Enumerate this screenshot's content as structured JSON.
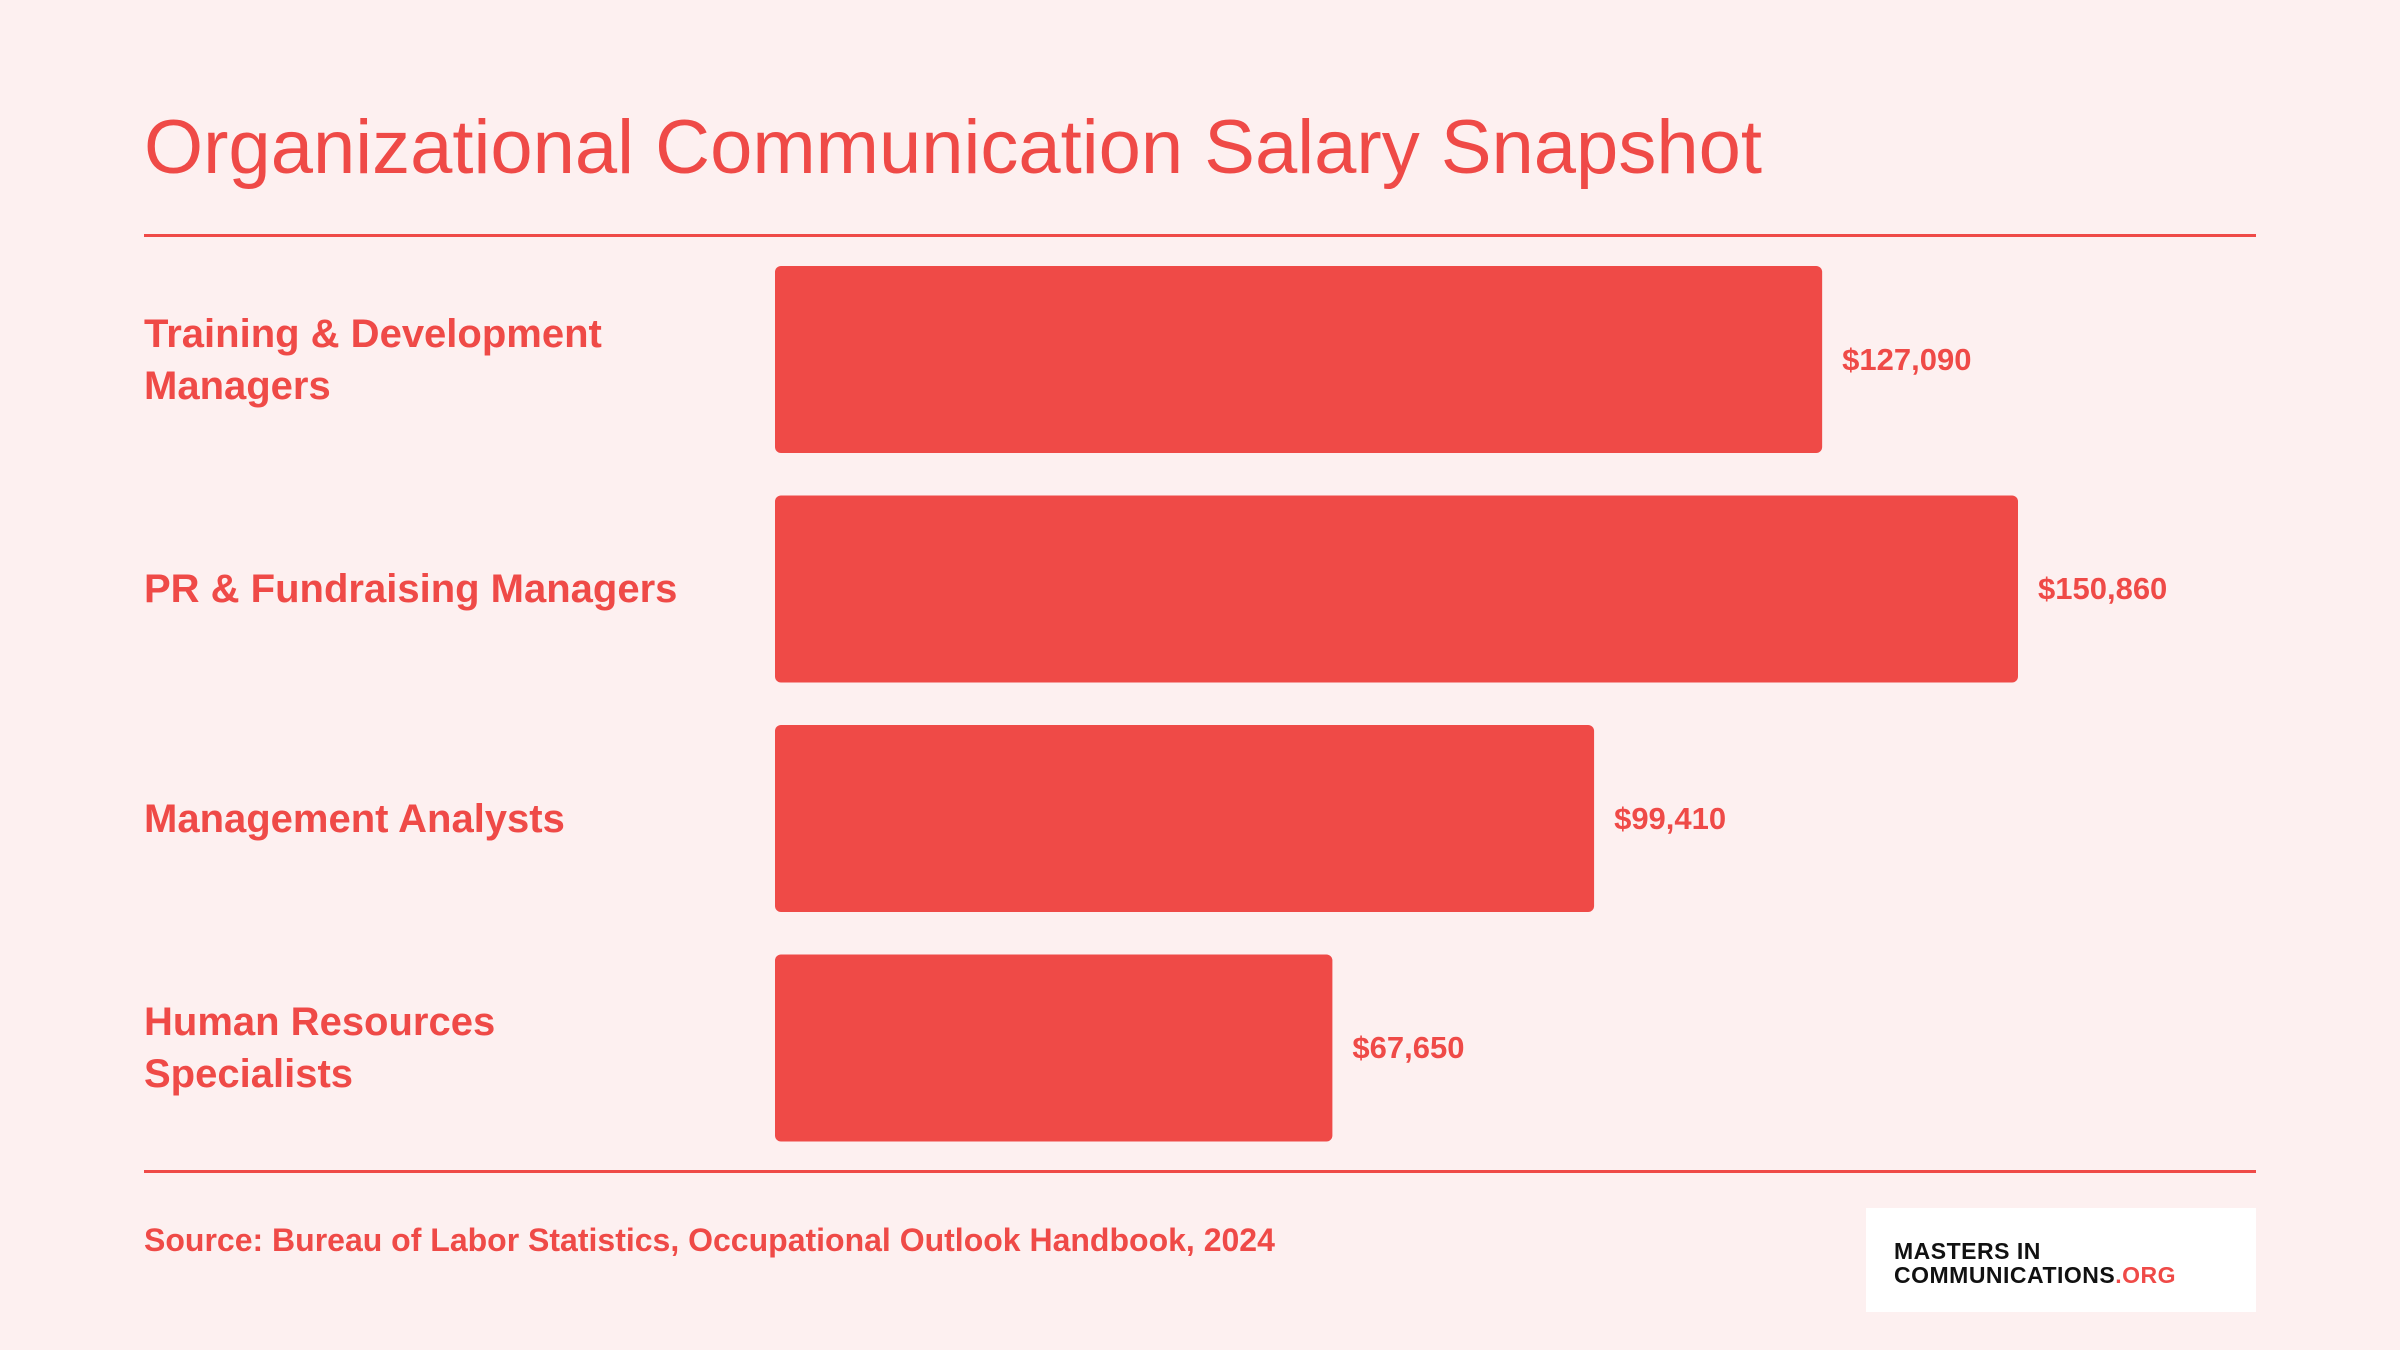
{
  "chart_data": {
    "type": "bar",
    "orientation": "horizontal",
    "title": "Organizational Communication Salary Snapshot",
    "categories": [
      "Training & Development\nManagers",
      "PR & Fundraising Managers",
      "Management Analysts",
      "Human Resources\nSpecialists"
    ],
    "values": [
      127090,
      150860,
      99410,
      67650
    ],
    "value_labels": [
      "$127,090",
      "$150,860",
      "$99,410",
      "$67,650"
    ],
    "color": "#ef4a47",
    "source": "Source: Bureau of Labor Statistics, Occupational Outlook Handbook, 2024"
  },
  "logo": {
    "line1": "MASTERS IN",
    "line2": "COMMUNICATIONS",
    "suffix": ".ORG"
  }
}
